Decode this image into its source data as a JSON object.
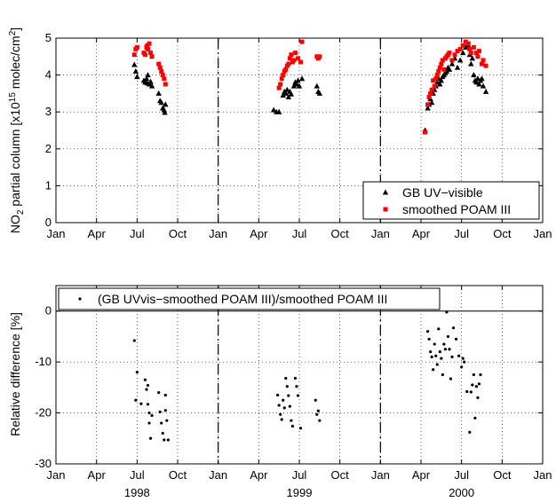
{
  "chart_data": [
    {
      "type": "scatter",
      "title": "",
      "xlabel": "",
      "ylabel": "NO2 partial column [x10^15 molec/cm^2]",
      "ylabel_parts": {
        "pre": "NO",
        "sub": "2",
        "mid": " partial column [x10",
        "sup1": "15",
        "post": " molec/cm",
        "sup2": "2",
        "end": "]"
      },
      "x_tick_labels": [
        "Jan",
        "Apr",
        "Jul",
        "Oct",
        "Jan",
        "Apr",
        "Jul",
        "Oct",
        "Jan",
        "Apr",
        "Jul",
        "Oct",
        "Jan"
      ],
      "y_ticks": [
        0,
        1,
        2,
        3,
        4,
        5
      ],
      "ylim": [
        0,
        5
      ],
      "grid": true,
      "legend_position": "bottom-right",
      "series": [
        {
          "name": "GB UV−visible",
          "marker": "triangle",
          "color": "#000000",
          "points": [
            [
              5.8,
              4.28
            ],
            [
              5.9,
              4.1
            ],
            [
              6.0,
              3.95
            ],
            [
              6.5,
              3.85
            ],
            [
              6.6,
              3.8
            ],
            [
              6.7,
              3.9
            ],
            [
              6.75,
              3.78
            ],
            [
              6.8,
              4.0
            ],
            [
              6.9,
              3.75
            ],
            [
              7.0,
              3.82
            ],
            [
              7.1,
              3.7
            ],
            [
              7.6,
              3.5
            ],
            [
              7.7,
              3.3
            ],
            [
              7.8,
              3.25
            ],
            [
              7.9,
              3.1
            ],
            [
              8.0,
              3.05
            ],
            [
              8.05,
              2.98
            ],
            [
              8.1,
              3.2
            ],
            [
              16.1,
              3.05
            ],
            [
              16.3,
              3.0
            ],
            [
              16.5,
              3.0
            ],
            [
              16.8,
              3.45
            ],
            [
              16.9,
              3.55
            ],
            [
              17.0,
              3.5
            ],
            [
              17.1,
              3.6
            ],
            [
              17.2,
              3.4
            ],
            [
              17.3,
              3.55
            ],
            [
              17.4,
              3.48
            ],
            [
              17.6,
              3.7
            ],
            [
              17.7,
              3.8
            ],
            [
              17.8,
              3.75
            ],
            [
              17.9,
              3.85
            ],
            [
              18.0,
              3.7
            ],
            [
              18.2,
              3.9
            ],
            [
              19.3,
              3.7
            ],
            [
              19.4,
              3.55
            ],
            [
              19.5,
              3.5
            ],
            [
              27.3,
              2.5
            ],
            [
              27.5,
              3.1
            ],
            [
              27.6,
              3.2
            ],
            [
              27.7,
              3.35
            ],
            [
              27.8,
              3.25
            ],
            [
              27.9,
              3.5
            ],
            [
              28.0,
              3.6
            ],
            [
              28.1,
              3.7
            ],
            [
              28.2,
              3.8
            ],
            [
              28.3,
              3.9
            ],
            [
              28.4,
              3.75
            ],
            [
              28.5,
              3.85
            ],
            [
              28.6,
              3.95
            ],
            [
              28.7,
              4.0
            ],
            [
              28.8,
              4.05
            ],
            [
              28.9,
              4.1
            ],
            [
              29.0,
              4.2
            ],
            [
              29.1,
              4.15
            ],
            [
              29.3,
              4.3
            ],
            [
              29.5,
              4.45
            ],
            [
              29.7,
              4.2
            ],
            [
              29.9,
              4.4
            ],
            [
              30.1,
              4.6
            ],
            [
              30.3,
              4.75
            ],
            [
              30.5,
              4.8
            ],
            [
              30.6,
              4.55
            ],
            [
              30.7,
              4.3
            ],
            [
              30.8,
              4.45
            ],
            [
              30.9,
              4.0
            ],
            [
              31.0,
              3.85
            ],
            [
              31.1,
              3.8
            ],
            [
              31.2,
              3.9
            ],
            [
              31.3,
              3.75
            ],
            [
              31.4,
              3.85
            ],
            [
              31.5,
              3.9
            ],
            [
              31.6,
              3.7
            ],
            [
              31.8,
              3.55
            ]
          ]
        },
        {
          "name": "smoothed POAM III",
          "marker": "square",
          "color": "#ff0000",
          "points": [
            [
              5.8,
              4.55
            ],
            [
              5.9,
              4.7
            ],
            [
              6.0,
              4.75
            ],
            [
              6.5,
              4.6
            ],
            [
              6.6,
              4.55
            ],
            [
              6.7,
              4.75
            ],
            [
              6.75,
              4.8
            ],
            [
              6.8,
              4.7
            ],
            [
              6.9,
              4.85
            ],
            [
              7.0,
              4.6
            ],
            [
              7.1,
              4.5
            ],
            [
              7.6,
              4.3
            ],
            [
              7.7,
              4.2
            ],
            [
              7.8,
              4.1
            ],
            [
              7.9,
              4.0
            ],
            [
              8.0,
              3.9
            ],
            [
              8.1,
              3.75
            ],
            [
              16.5,
              3.65
            ],
            [
              16.6,
              3.75
            ],
            [
              16.7,
              3.9
            ],
            [
              16.8,
              4.0
            ],
            [
              16.9,
              4.1
            ],
            [
              17.0,
              4.15
            ],
            [
              17.1,
              4.25
            ],
            [
              17.2,
              4.3
            ],
            [
              17.3,
              4.45
            ],
            [
              17.4,
              4.55
            ],
            [
              17.5,
              4.35
            ],
            [
              17.6,
              4.4
            ],
            [
              17.7,
              4.6
            ],
            [
              17.9,
              4.45
            ],
            [
              18.1,
              4.35
            ],
            [
              18.2,
              4.9
            ],
            [
              19.3,
              4.5
            ],
            [
              19.4,
              4.45
            ],
            [
              19.5,
              4.5
            ],
            [
              27.3,
              2.45
            ],
            [
              27.5,
              3.2
            ],
            [
              27.6,
              3.4
            ],
            [
              27.7,
              3.5
            ],
            [
              27.8,
              3.6
            ],
            [
              27.9,
              3.85
            ],
            [
              28.0,
              3.7
            ],
            [
              28.1,
              3.9
            ],
            [
              28.2,
              4.0
            ],
            [
              28.3,
              4.1
            ],
            [
              28.4,
              4.2
            ],
            [
              28.5,
              4.3
            ],
            [
              28.6,
              4.4
            ],
            [
              28.7,
              4.15
            ],
            [
              28.8,
              4.45
            ],
            [
              28.9,
              4.5
            ],
            [
              29.0,
              4.55
            ],
            [
              29.1,
              4.6
            ],
            [
              29.3,
              4.4
            ],
            [
              29.5,
              4.55
            ],
            [
              29.7,
              4.65
            ],
            [
              29.9,
              4.7
            ],
            [
              30.1,
              4.8
            ],
            [
              30.3,
              4.9
            ],
            [
              30.5,
              4.85
            ],
            [
              30.6,
              4.7
            ],
            [
              30.7,
              4.6
            ],
            [
              30.9,
              4.75
            ],
            [
              31.1,
              4.6
            ],
            [
              31.2,
              4.5
            ],
            [
              31.3,
              4.65
            ],
            [
              31.5,
              4.3
            ],
            [
              31.6,
              4.4
            ],
            [
              31.8,
              4.25
            ]
          ]
        }
      ]
    },
    {
      "type": "scatter",
      "title": "",
      "xlabel": "",
      "ylabel": "Relative difference [%]",
      "x_tick_labels": [
        "Jan",
        "Apr",
        "Jul",
        "Oct",
        "Jan",
        "Apr",
        "Jul",
        "Oct",
        "Jan",
        "Apr",
        "Jul",
        "Oct",
        "Jan"
      ],
      "year_labels": [
        "1998",
        "1999",
        "2000"
      ],
      "y_ticks": [
        -30,
        -20,
        -10,
        0
      ],
      "ylim": [
        -30,
        5
      ],
      "grid": true,
      "legend_position": "top-left",
      "series": [
        {
          "name": "(GB UVvis−smoothed POAM III)/smoothed POAM III",
          "marker": "dot",
          "color": "#000000",
          "points": [
            [
              5.8,
              -5.8
            ],
            [
              6.0,
              -12
            ],
            [
              5.9,
              -17.5
            ],
            [
              6.3,
              -18.2
            ],
            [
              6.6,
              -13.5
            ],
            [
              6.7,
              -15.4
            ],
            [
              6.8,
              -14.6
            ],
            [
              6.8,
              -18.3
            ],
            [
              6.9,
              -20
            ],
            [
              6.9,
              -22
            ],
            [
              7.0,
              -25
            ],
            [
              7.1,
              -20.5
            ],
            [
              7.6,
              -16
            ],
            [
              7.7,
              -19.8
            ],
            [
              7.8,
              -22
            ],
            [
              7.9,
              -24
            ],
            [
              8.0,
              -25.3
            ],
            [
              8.1,
              -16.5
            ],
            [
              8.1,
              -19.5
            ],
            [
              8.2,
              -21.5
            ],
            [
              8.3,
              -25.3
            ],
            [
              16.4,
              -16.5
            ],
            [
              16.5,
              -18.5
            ],
            [
              16.6,
              -20.3
            ],
            [
              16.7,
              -21.3
            ],
            [
              16.8,
              -17.5
            ],
            [
              16.9,
              -19
            ],
            [
              17.0,
              -13.2
            ],
            [
              17.1,
              -14.8
            ],
            [
              17.2,
              -16.6
            ],
            [
              17.3,
              -18.7
            ],
            [
              17.4,
              -21.5
            ],
            [
              17.5,
              -22.6
            ],
            [
              17.7,
              -13.2
            ],
            [
              17.8,
              -14.8
            ],
            [
              17.9,
              -16.6
            ],
            [
              18.1,
              -23
            ],
            [
              19.2,
              -17.5
            ],
            [
              19.3,
              -20.3
            ],
            [
              19.4,
              -19.6
            ],
            [
              19.5,
              -21.5
            ],
            [
              27.3,
              2
            ],
            [
              27.5,
              -4
            ],
            [
              27.6,
              -5.5
            ],
            [
              27.7,
              -8
            ],
            [
              27.8,
              -9
            ],
            [
              27.9,
              -11.5
            ],
            [
              28.0,
              -6.5
            ],
            [
              28.1,
              -8.8
            ],
            [
              28.2,
              -10.5
            ],
            [
              28.3,
              -3.5
            ],
            [
              28.4,
              -8
            ],
            [
              28.5,
              -9.3
            ],
            [
              28.6,
              -12.5
            ],
            [
              28.7,
              -6.5
            ],
            [
              28.8,
              -7.5
            ],
            [
              28.9,
              -0.2
            ],
            [
              29.0,
              -5
            ],
            [
              29.1,
              -7.5
            ],
            [
              29.2,
              -13.3
            ],
            [
              29.3,
              -9
            ],
            [
              29.4,
              -3.3
            ],
            [
              29.6,
              -5.5
            ],
            [
              29.8,
              -8.8
            ],
            [
              30.0,
              -11
            ],
            [
              30.1,
              -9.3
            ],
            [
              30.2,
              -10
            ],
            [
              30.4,
              -15.8
            ],
            [
              30.6,
              -23.8
            ],
            [
              30.7,
              -15.9
            ],
            [
              30.8,
              -14.5
            ],
            [
              30.9,
              -12.5
            ],
            [
              31.0,
              -21
            ],
            [
              31.1,
              -14.8
            ],
            [
              31.2,
              -17
            ],
            [
              31.3,
              -14.3
            ],
            [
              31.4,
              -12.5
            ]
          ]
        }
      ]
    }
  ]
}
